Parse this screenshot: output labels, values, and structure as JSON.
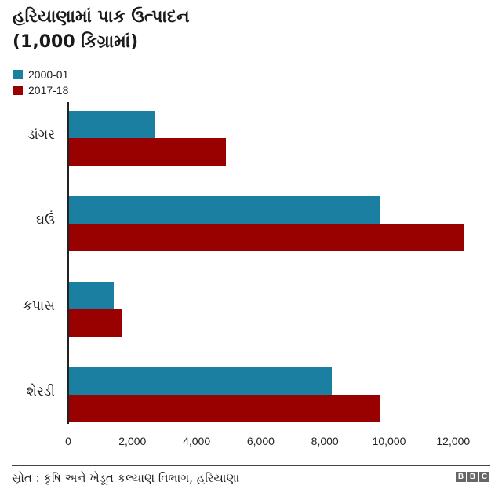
{
  "title": {
    "line1": "હરિયાણામાં પાક ઉત્પાદન",
    "line2": "(1,000 કિગ્રામાં)"
  },
  "legend": [
    {
      "label": "2000-01",
      "color": "#1a7fa0"
    },
    {
      "label": "2017-18",
      "color": "#990000"
    }
  ],
  "footer": {
    "source": "સ્રોત : કૃષિ અને ખેડૂત કલ્યાણ વિભાગ, હરિયાણા",
    "logo": [
      "B",
      "B",
      "C"
    ]
  },
  "chart_data": {
    "type": "bar",
    "orientation": "horizontal",
    "title": "હરિયાણામાં પાક ઉત્પાદન (1,000 કિગ્રામાં)",
    "xlabel": "",
    "ylabel": "",
    "categories": [
      "ડાંગર",
      "ઘઉં",
      "કપાસ",
      "શેરડી"
    ],
    "series": [
      {
        "name": "2000-01",
        "color": "#1a7fa0",
        "values": [
          2700,
          9700,
          1400,
          8200
        ]
      },
      {
        "name": "2017-18",
        "color": "#990000",
        "values": [
          4900,
          12300,
          1650,
          9700
        ]
      }
    ],
    "xlim": [
      0,
      12500
    ],
    "xticks": [
      "0",
      "2,000",
      "4,000",
      "6,000",
      "8,000",
      "10,000",
      "12,000"
    ],
    "grid": false,
    "legend_position": "top-left"
  }
}
